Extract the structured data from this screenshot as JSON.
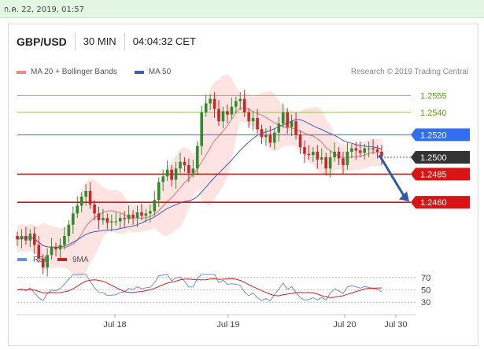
{
  "timestamp": "ก.ค. 22, 2019, 01:57",
  "header": {
    "pair": "GBP/USD",
    "timeframe": "30 MIN",
    "time": "04:04:32 CET"
  },
  "legend": {
    "bb_label": "MA 20 + Bollinger Bands",
    "ma50_label": "MA 50",
    "credit": "Research © 2019 Trading Central"
  },
  "rsi_legend": {
    "rsi_label": "RSI",
    "ma_label": "9MA"
  },
  "colors": {
    "up": "#2e8b2e",
    "down": "#c62828",
    "bb_fill": "#fddada",
    "ma20": "#e57373",
    "ma50": "#3f5fb5",
    "support": "#d81414",
    "resistance_green": "#8bc34a",
    "pivot_blue": "#2f6ff0",
    "last": "#333333",
    "rsi": "#6b8fe0",
    "rsi_ma": "#cc2222"
  },
  "chart_data": {
    "type": "candlestick",
    "ylim": [
      1.243,
      1.257
    ],
    "x_ticks": [
      "Jul 18",
      "Jul 19",
      "Jul 20",
      "Jul 30"
    ],
    "levels": [
      {
        "value": 1.2555,
        "label": "1.2555",
        "kind": "resistance"
      },
      {
        "value": 1.254,
        "label": "1.2540",
        "kind": "resistance"
      },
      {
        "value": 1.252,
        "label": "1.2520",
        "kind": "pivot"
      },
      {
        "value": 1.25,
        "label": "1.2500",
        "kind": "last"
      },
      {
        "value": 1.2485,
        "label": "1.2485",
        "kind": "support"
      },
      {
        "value": 1.246,
        "label": "1.2460",
        "kind": "support"
      }
    ],
    "closes": [
      1.2427,
      1.243,
      1.2426,
      1.2432,
      1.2422,
      1.241,
      1.2402,
      1.2413,
      1.242,
      1.2418,
      1.2422,
      1.243,
      1.244,
      1.245,
      1.2457,
      1.2465,
      1.247,
      1.2458,
      1.245,
      1.2444,
      1.2446,
      1.2442,
      1.2443,
      1.2443,
      1.2446,
      1.2445,
      1.2449,
      1.2446,
      1.2451,
      1.2448,
      1.245,
      1.2452,
      1.2462,
      1.2478,
      1.2483,
      1.2489,
      1.248,
      1.249,
      1.2496,
      1.2493,
      1.2486,
      1.249,
      1.251,
      1.254,
      1.2548,
      1.2552,
      1.2543,
      1.2532,
      1.2541,
      1.2538,
      1.2545,
      1.255,
      1.2552,
      1.254,
      1.2532,
      1.2535,
      1.2525,
      1.2518,
      1.252,
      1.2513,
      1.2522,
      1.253,
      1.254,
      1.2527,
      1.2532,
      1.252,
      1.2509,
      1.2503,
      1.2502,
      1.2505,
      1.2498,
      1.25,
      1.249,
      1.25,
      1.2505,
      1.2499,
      1.2493,
      1.2505,
      1.2508,
      1.2506,
      1.2504,
      1.2508,
      1.2508,
      1.2507,
      1.2505,
      1.2501
    ],
    "rsi": {
      "ticks": [
        70,
        50,
        30
      ],
      "ylim": [
        20,
        80
      ]
    },
    "forecast_arrow": {
      "from": 1.2502,
      "to": 1.2462
    }
  }
}
